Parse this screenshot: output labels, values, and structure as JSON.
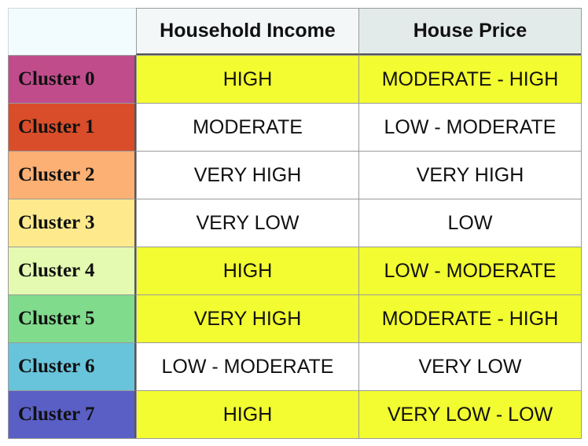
{
  "table": {
    "columns": [
      "Household Income",
      "House Price"
    ],
    "rows": [
      {
        "label": "Cluster 0",
        "color": "#c04c8c",
        "highlight": true,
        "income": "HIGH",
        "price": "MODERATE - HIGH"
      },
      {
        "label": "Cluster 1",
        "color": "#d94d2a",
        "highlight": false,
        "income": "MODERATE",
        "price": "LOW - MODERATE"
      },
      {
        "label": "Cluster 2",
        "color": "#fdb073",
        "highlight": false,
        "income": "VERY HIGH",
        "price": "VERY HIGH"
      },
      {
        "label": "Cluster 3",
        "color": "#feea8c",
        "highlight": false,
        "income": "VERY LOW",
        "price": "LOW"
      },
      {
        "label": "Cluster 4",
        "color": "#e4fab0",
        "highlight": true,
        "income": "HIGH",
        "price": "LOW - MODERATE"
      },
      {
        "label": "Cluster 5",
        "color": "#80db8c",
        "highlight": true,
        "income": "VERY HIGH",
        "price": "MODERATE - HIGH"
      },
      {
        "label": "Cluster 6",
        "color": "#68c4db",
        "highlight": false,
        "income": "LOW - MODERATE",
        "price": "VERY LOW"
      },
      {
        "label": "Cluster 7",
        "color": "#5a5fc6",
        "highlight": true,
        "income": "HIGH",
        "price": "VERY LOW - LOW"
      }
    ],
    "highlight_color": "#f2fc30"
  }
}
